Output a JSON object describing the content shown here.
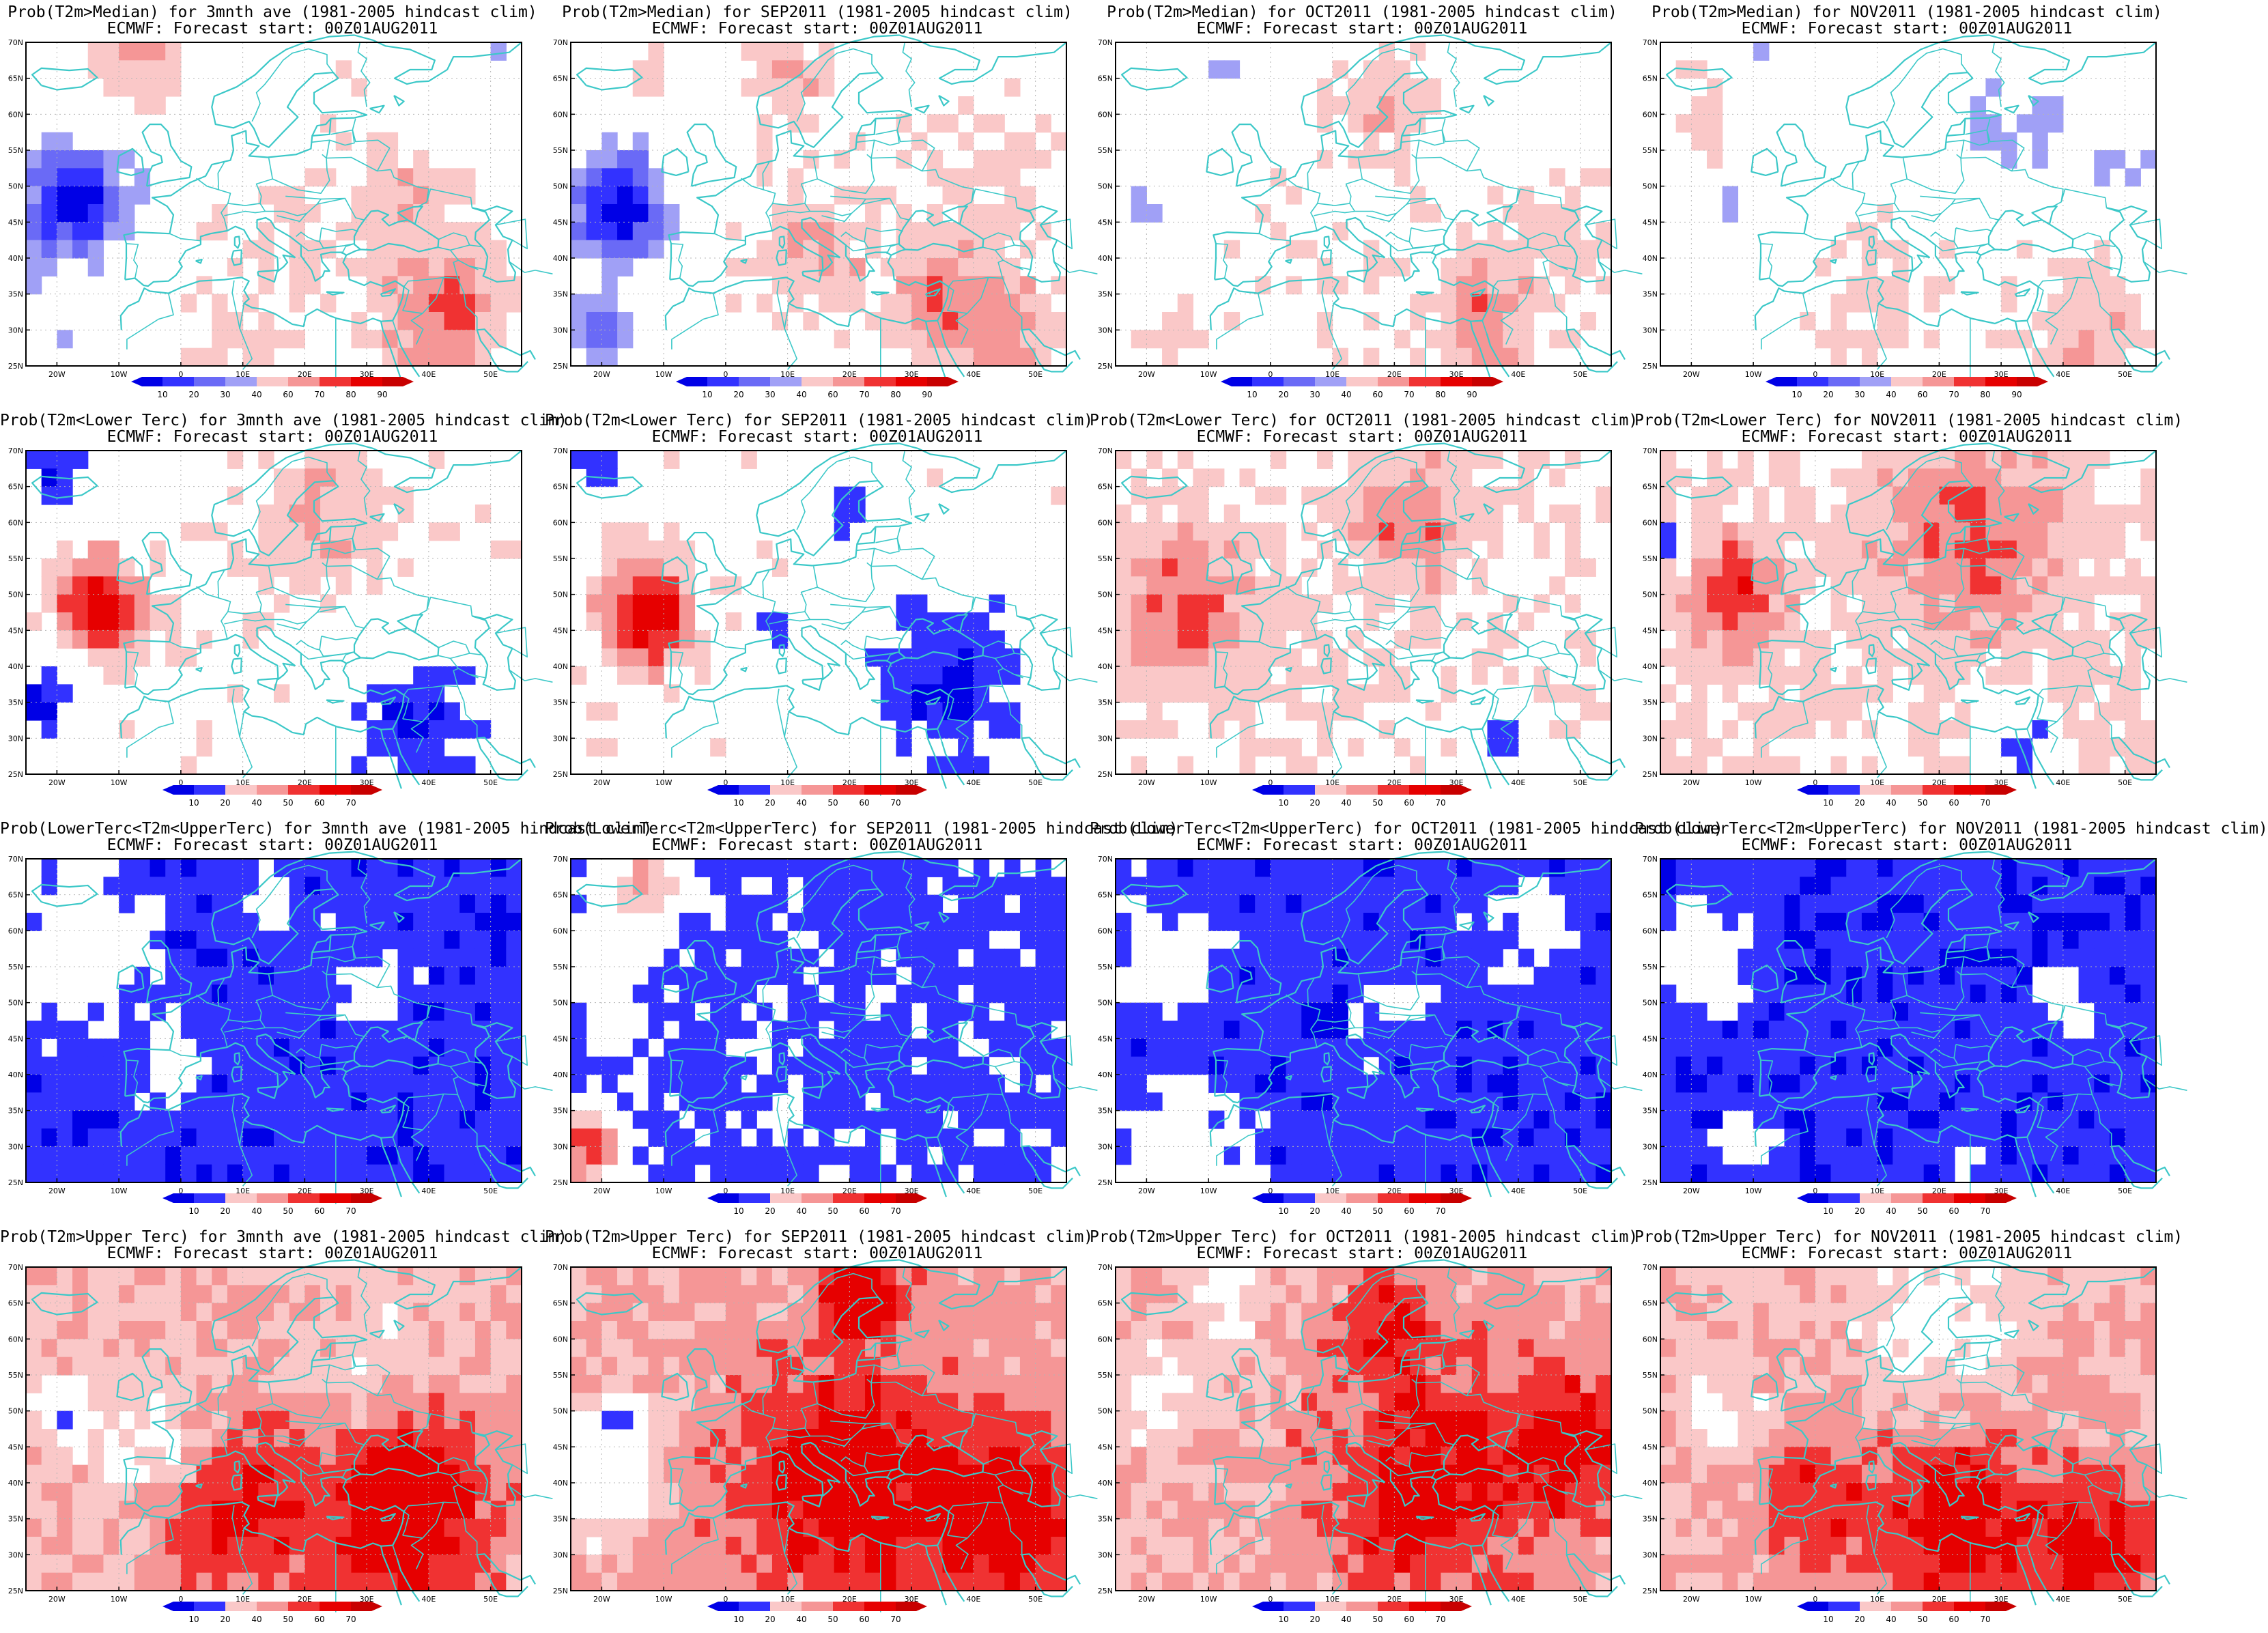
{
  "figure": {
    "subtitle": "ECMWF: Forecast start: 00Z01AUG2011",
    "lat_labels": [
      "70N",
      "65N",
      "60N",
      "55N",
      "50N",
      "45N",
      "40N",
      "35N",
      "30N",
      "25N"
    ],
    "lon_labels": [
      "20W",
      "10W",
      "0",
      "10E",
      "20E",
      "30E",
      "40E",
      "50E"
    ],
    "colors": {
      "coast": "#3cc8c8",
      "grid": "#b4b4b4",
      "blue": [
        "#0000e6",
        "#3232ff",
        "#6a6af6",
        "#a0a0f6"
      ],
      "red": [
        "#fac8c8",
        "#f59696",
        "#f06464",
        "#f03232",
        "#e60000",
        "#c80000"
      ]
    },
    "colorbars": {
      "median": {
        "ticks": [
          "10",
          "20",
          "30",
          "40",
          "60",
          "70",
          "80",
          "90"
        ],
        "blue_count": 4
      },
      "tercile": {
        "ticks": [
          "10",
          "20",
          "40",
          "50",
          "60",
          "70"
        ],
        "blue_count": 2
      }
    },
    "rows": [
      {
        "colorbar": "median",
        "titles": [
          "Prob(T2m>Median) for 3mnth ave (1981-2005 hindcast clim)",
          "Prob(T2m>Median) for SEP2011 (1981-2005 hindcast clim)",
          "Prob(T2m>Median) for OCT2011 (1981-2005 hindcast clim)",
          "Prob(T2m>Median) for NOV2011 (1981-2005 hindcast clim)"
        ]
      },
      {
        "colorbar": "tercile",
        "titles": [
          "Prob(T2m<Lower Terc) for 3mnth ave (1981-2005 hindcast clim)",
          "Prob(T2m<Lower Terc) for SEP2011 (1981-2005 hindcast clim)",
          "Prob(T2m<Lower Terc) for OCT2011 (1981-2005 hindcast clim)",
          "Prob(T2m<Lower Terc) for NOV2011 (1981-2005 hindcast clim)"
        ]
      },
      {
        "colorbar": "tercile",
        "titles": [
          "Prob(LowerTerc<T2m<UpperTerc) for 3mnth ave (1981-2005 hindcast clim)",
          "Prob(LowerTerc<T2m<UpperTerc) for SEP2011 (1981-2005 hindcast clim)",
          "Prob(LowerTerc<T2m<UpperTerc) for OCT2011 (1981-2005 hindcast clim)",
          "Prob(LowerTerc<T2m<UpperTerc) for NOV2011 (1981-2005 hindcast clim)"
        ]
      },
      {
        "colorbar": "tercile",
        "titles": [
          "Prob(T2m>Upper Terc) for 3mnth ave (1981-2005 hindcast clim)",
          "Prob(T2m>Upper Terc) for SEP2011 (1981-2005 hindcast clim)",
          "Prob(T2m>Upper Terc) for OCT2011 (1981-2005 hindcast clim)",
          "Prob(T2m>Upper Terc) for NOV2011 (1981-2005 hindcast clim)"
        ]
      }
    ]
  }
}
